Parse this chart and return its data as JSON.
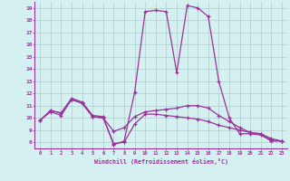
{
  "xlabel": "Windchill (Refroidissement éolien,°C)",
  "x": [
    0,
    1,
    2,
    3,
    4,
    5,
    6,
    7,
    8,
    9,
    10,
    11,
    12,
    13,
    14,
    15,
    16,
    17,
    18,
    19,
    20,
    21,
    22,
    23
  ],
  "line1": [
    9.8,
    10.6,
    10.4,
    11.6,
    11.3,
    10.2,
    10.1,
    7.8,
    8.1,
    12.1,
    18.7,
    18.8,
    18.7,
    13.7,
    19.2,
    19.0,
    18.3,
    13.0,
    10.0,
    8.7,
    8.7,
    8.6,
    8.1,
    8.1
  ],
  "line2": [
    9.8,
    10.5,
    10.2,
    11.5,
    11.2,
    10.1,
    10.0,
    8.9,
    9.2,
    10.1,
    10.5,
    10.6,
    10.7,
    10.8,
    11.0,
    11.0,
    10.8,
    10.2,
    9.7,
    9.2,
    8.8,
    8.7,
    8.2,
    8.1
  ],
  "line3": [
    9.8,
    10.6,
    10.4,
    11.5,
    11.2,
    10.1,
    10.0,
    7.9,
    8.0,
    9.5,
    10.3,
    10.3,
    10.2,
    10.1,
    10.0,
    9.9,
    9.7,
    9.4,
    9.2,
    9.0,
    8.8,
    8.7,
    8.3,
    8.1
  ],
  "line_color": "#993399",
  "bg_color": "#d4f0f0",
  "grid_color": "#b0cccc",
  "ylim": [
    7.5,
    19.5
  ],
  "xlim": [
    -0.5,
    23.5
  ],
  "yticks": [
    8,
    9,
    10,
    11,
    12,
    13,
    14,
    15,
    16,
    17,
    18,
    19
  ],
  "xticks": [
    0,
    1,
    2,
    3,
    4,
    5,
    6,
    7,
    8,
    9,
    10,
    11,
    12,
    13,
    14,
    15,
    16,
    17,
    18,
    19,
    20,
    21,
    22,
    23
  ]
}
